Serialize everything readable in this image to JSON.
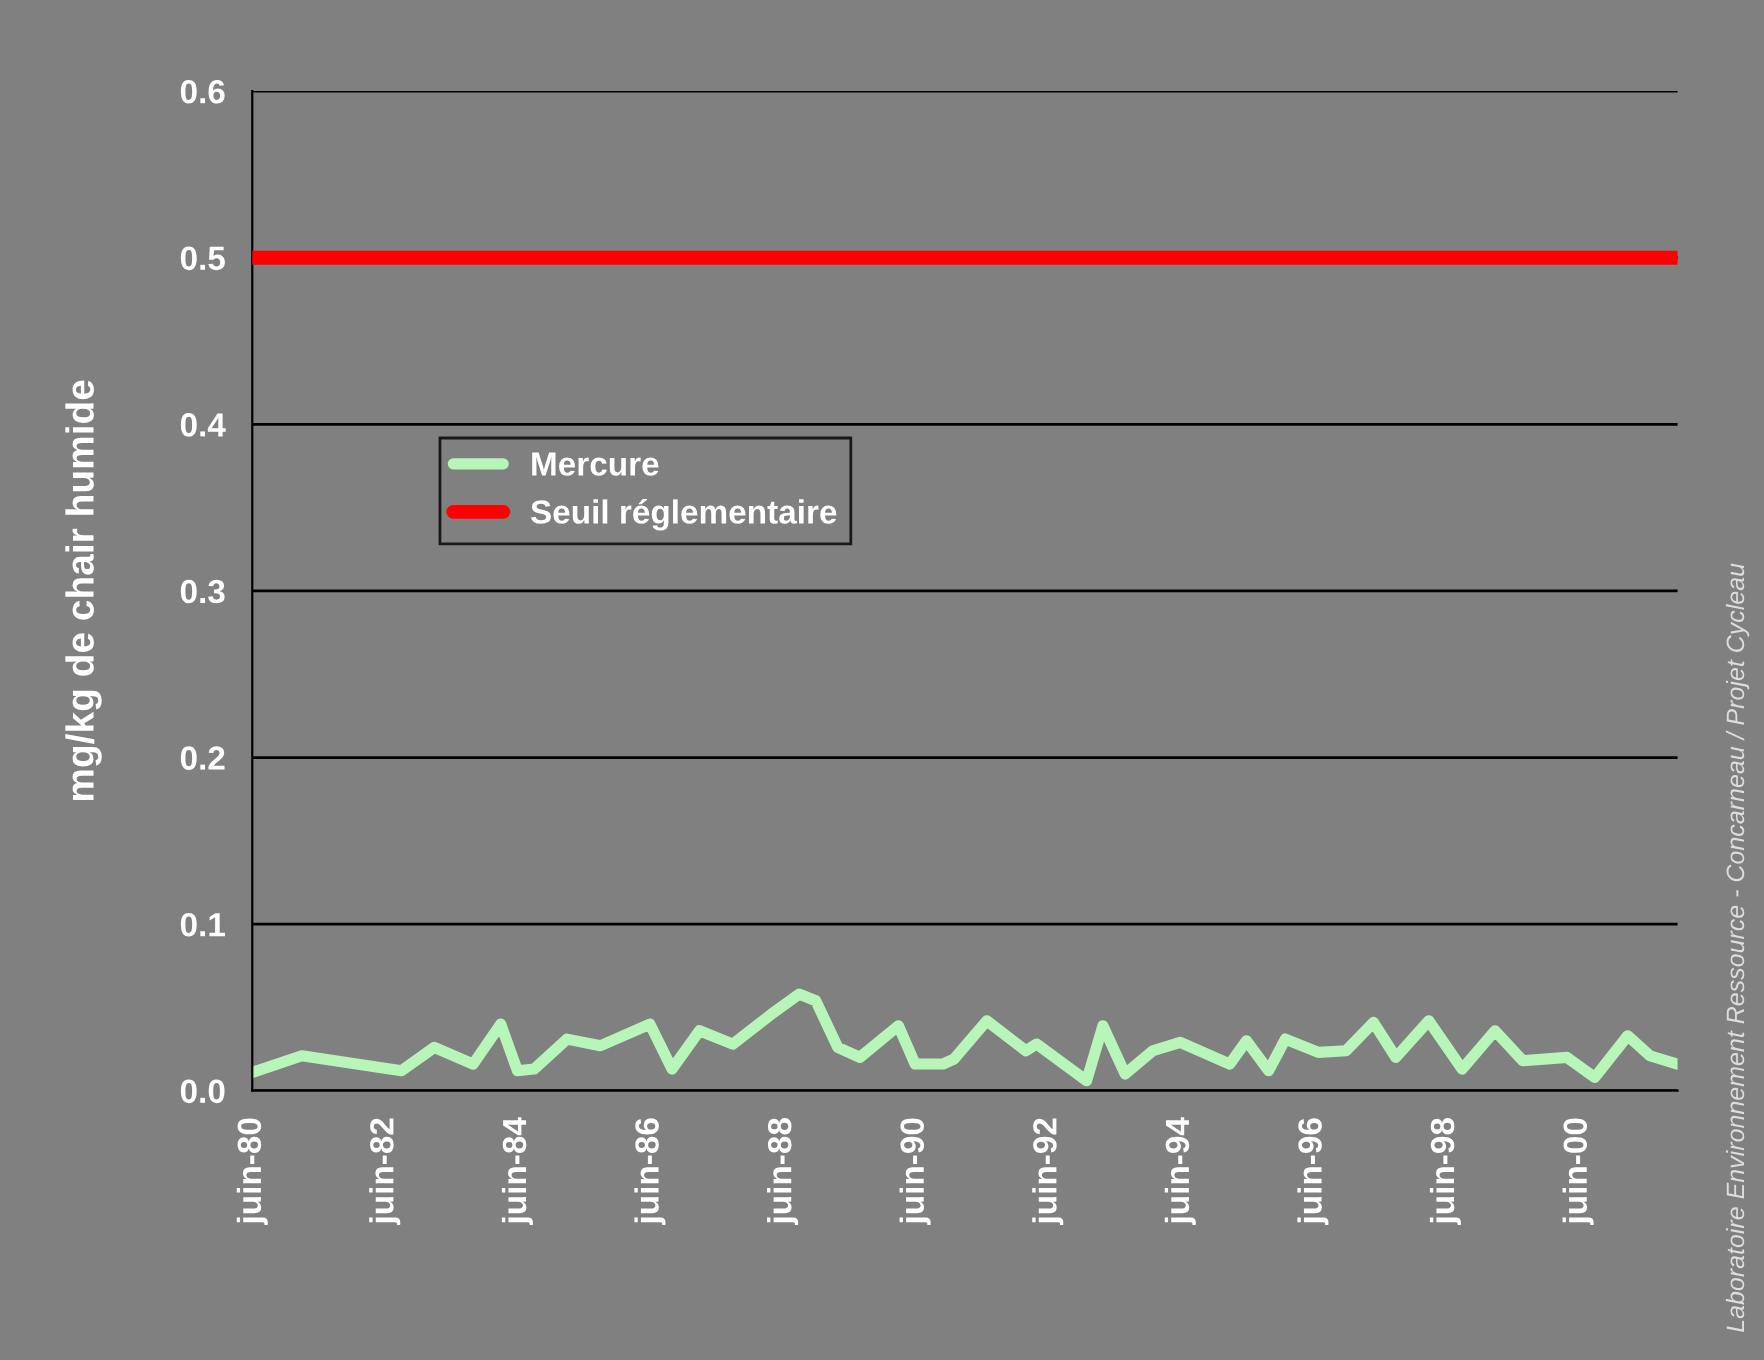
{
  "chart_data": {
    "type": "line",
    "ylabel": "mg/kg de chair humide",
    "x": [
      "1980-06",
      "1981-03",
      "1982-09",
      "1983-03",
      "1983-10",
      "1984-03",
      "1984-06",
      "1984-09",
      "1985-03",
      "1985-09",
      "1986-06",
      "1986-10",
      "1987-03",
      "1987-09",
      "1988-04",
      "1988-09",
      "1988-12",
      "1989-04",
      "1989-08",
      "1990-03",
      "1990-06",
      "1990-11",
      "1991-01",
      "1991-07",
      "1992-02",
      "1992-04",
      "1993-01",
      "1993-04",
      "1993-08",
      "1994-01",
      "1994-06",
      "1995-03",
      "1995-06",
      "1995-10",
      "1996-01",
      "1996-07",
      "1996-12",
      "1997-05",
      "1997-09",
      "1998-03",
      "1998-09",
      "1999-03",
      "1999-08",
      "2000-04",
      "2000-09",
      "2001-03",
      "2001-07",
      "2001-12"
    ],
    "series": [
      {
        "name": "Mercure",
        "color": "#b8f5b8",
        "values": [
          0.011,
          0.021,
          0.012,
          0.026,
          0.016,
          0.04,
          0.012,
          0.013,
          0.031,
          0.027,
          0.04,
          0.013,
          0.036,
          0.028,
          0.046,
          0.058,
          0.054,
          0.026,
          0.02,
          0.039,
          0.016,
          0.016,
          0.019,
          0.042,
          0.024,
          0.028,
          0.006,
          0.039,
          0.01,
          0.024,
          0.029,
          0.016,
          0.03,
          0.012,
          0.031,
          0.023,
          0.024,
          0.041,
          0.02,
          0.042,
          0.013,
          0.036,
          0.018,
          0.02,
          0.008,
          0.033,
          0.021,
          0.016
        ]
      }
    ],
    "ref_lines": [
      {
        "axis": "y",
        "value": 0.5,
        "label": "Seuil réglementaire",
        "color": "#ff0000",
        "line_style": "solid"
      }
    ],
    "xlim": [
      "1980-06",
      "2001-12"
    ],
    "xticks": [
      {
        "value": "1980-06",
        "label": "juin-80"
      },
      {
        "value": "1982-06",
        "label": "juin-82"
      },
      {
        "value": "1984-06",
        "label": "juin-84"
      },
      {
        "value": "1986-06",
        "label": "juin-86"
      },
      {
        "value": "1988-06",
        "label": "juin-88"
      },
      {
        "value": "1990-06",
        "label": "juin-90"
      },
      {
        "value": "1992-06",
        "label": "juin-92"
      },
      {
        "value": "1994-06",
        "label": "juin-94"
      },
      {
        "value": "1996-06",
        "label": "juin-96"
      },
      {
        "value": "1998-06",
        "label": "juin-98"
      },
      {
        "value": "2000-06",
        "label": "juin-00"
      }
    ],
    "ylim": [
      0,
      0.6
    ],
    "yticks": [
      {
        "value": 0,
        "label": "0.0"
      },
      {
        "value": 0.1,
        "label": "0.1"
      },
      {
        "value": 0.2,
        "label": "0.2"
      },
      {
        "value": 0.3,
        "label": "0.3"
      },
      {
        "value": 0.4,
        "label": "0.4"
      },
      {
        "value": 0.5,
        "label": "0.5"
      },
      {
        "value": 0.6,
        "label": "0.6"
      }
    ],
    "grid": "y",
    "legend": "left",
    "marker": "none",
    "line_style": "solid",
    "annotations": [
      "Laboratoire Environnement Ressource - Concarneau / Projet Cycleau"
    ]
  }
}
